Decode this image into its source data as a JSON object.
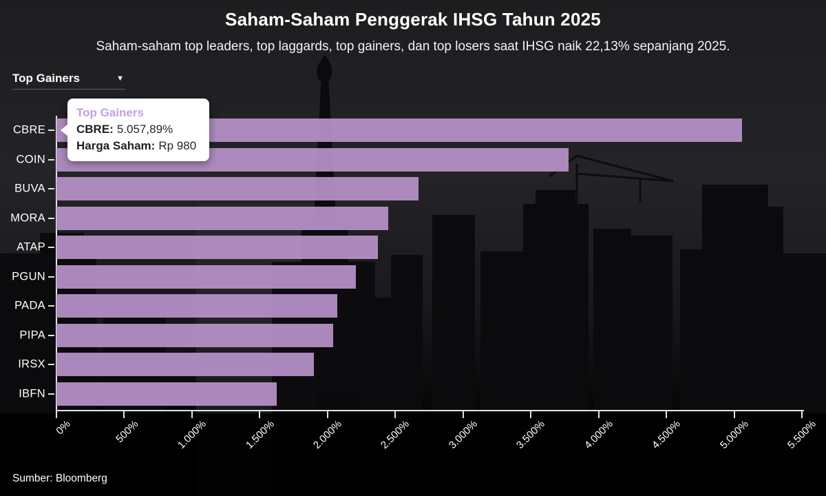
{
  "header": {
    "title": "Saham-Saham Penggerak IHSG Tahun 2025",
    "subtitle": "Saham-saham top leaders, top laggards, top gainers, dan top losers saat IHSG naik 22,13% sepanjang 2025."
  },
  "dropdown": {
    "value": "Top Gainers"
  },
  "tooltip": {
    "series": "Top Gainers",
    "ticker_label": "CBRE:",
    "ticker_value": "5.057,89%",
    "price_label": "Harga Saham:",
    "price_value": "Rp 980"
  },
  "footer": {
    "source": "Sumber: Bloomberg"
  },
  "colors": {
    "bar": "#b690c7",
    "tooltip_accent": "#c49fe2",
    "axis": "#e4e4e4"
  },
  "chart_data": {
    "type": "bar",
    "orientation": "horizontal",
    "title": "Saham-Saham Penggerak IHSG Tahun 2025",
    "categories": [
      "CBRE",
      "COIN",
      "BUVA",
      "MORA",
      "ATAP",
      "PGUN",
      "PADA",
      "PIPA",
      "IRSX",
      "IBFN"
    ],
    "values": [
      5057.89,
      3780,
      2670,
      2450,
      2370,
      2210,
      2070,
      2040,
      1900,
      1625
    ],
    "unit": "%",
    "highlighted_bar": "CBRE",
    "x_tick_labels": [
      "0%",
      "500%",
      "1.000%",
      "1.500%",
      "2.000%",
      "2.500%",
      "3.000%",
      "3.500%",
      "4.000%",
      "4.500%",
      "5.000%",
      "5.500%"
    ],
    "xlim": [
      0,
      5500
    ],
    "bar_color": "#b690c7",
    "grid": false,
    "legend": null
  }
}
